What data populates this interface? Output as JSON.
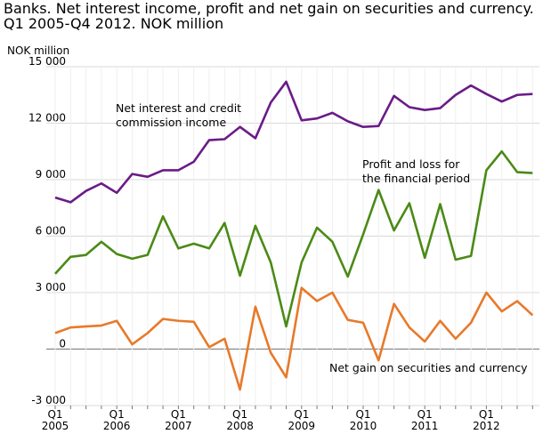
{
  "chart_data": {
    "type": "line",
    "title": "Banks. Net interest income, profit and net gain on securities and currency.",
    "subtitle": "Q1 2005-Q4 2012. NOK million",
    "y_label": "NOK million",
    "categories": [
      "Q1 2005",
      null,
      null,
      null,
      "Q1 2006",
      null,
      null,
      null,
      "Q1 2007",
      null,
      null,
      null,
      "Q1 2008",
      null,
      null,
      null,
      "Q1 2009",
      null,
      null,
      null,
      "Q1 2010",
      null,
      null,
      null,
      "Q1 2011",
      null,
      null,
      null,
      "Q1 2012",
      null,
      null,
      null
    ],
    "series": [
      {
        "name": "Net interest and credit commission income",
        "color": "#6a1b87",
        "values": [
          8050,
          7800,
          8400,
          8800,
          8300,
          9300,
          9150,
          9500,
          9500,
          9950,
          11100,
          11150,
          11800,
          11200,
          13100,
          14200,
          12150,
          12250,
          12550,
          12100,
          11800,
          11850,
          13450,
          12850,
          12700,
          12800,
          13500,
          14000,
          13550,
          13150,
          13500,
          13550
        ]
      },
      {
        "name": "Profit and loss for the financial period",
        "color": "#4a8a16",
        "values": [
          4000,
          4900,
          5000,
          5700,
          5050,
          4800,
          5000,
          7050,
          5350,
          5600,
          5350,
          6700,
          3900,
          6550,
          4600,
          1200,
          4600,
          6450,
          5700,
          3850,
          6100,
          8450,
          6300,
          7750,
          4850,
          7700,
          4750,
          4950,
          9500,
          10500,
          9400,
          9350
        ]
      },
      {
        "name": "Net gain on securities and currency",
        "color": "#e8792a",
        "values": [
          850,
          1150,
          1200,
          1250,
          1500,
          250,
          850,
          1600,
          1500,
          1450,
          100,
          550,
          -2150,
          2250,
          -200,
          -1500,
          3250,
          2550,
          3000,
          1550,
          1400,
          -600,
          2400,
          1150,
          400,
          1500,
          550,
          1400,
          3000,
          2000,
          2550,
          1800
        ]
      }
    ],
    "ylim": [
      -3000,
      15000
    ],
    "yticks": [
      {
        "value": -3000,
        "label": "-3 000"
      },
      0,
      {
        "value": 3000,
        "label": "3 000"
      },
      {
        "value": 6000,
        "label": "6 000"
      },
      {
        "value": 9000,
        "label": "9 000"
      },
      {
        "value": 12000,
        "label": "12 000"
      },
      {
        "value": 15000,
        "label": "15 000"
      }
    ],
    "grid": true
  }
}
